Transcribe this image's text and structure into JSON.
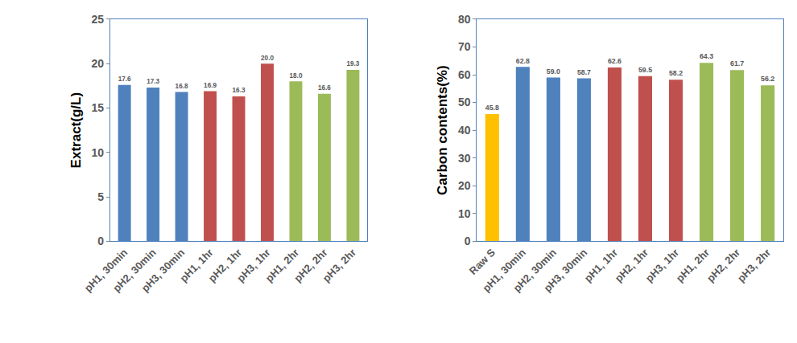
{
  "chart_data": [
    {
      "type": "bar",
      "y_label": "Extract(g/L)",
      "categories": [
        "pH1, 30min",
        "pH2, 30min",
        "pH3, 30min",
        "pH1, 1hr",
        "pH2, 1hr",
        "pH3, 1hr",
        "pH1, 2hr",
        "pH2, 2hr",
        "pH3, 2hr"
      ],
      "values": [
        17.6,
        17.3,
        16.8,
        16.9,
        16.3,
        20.0,
        18.0,
        16.6,
        19.3
      ],
      "value_labels": [
        "17.6",
        "17.3",
        "16.8",
        "16.9",
        "16.3",
        "20.0",
        "18.0",
        "16.6",
        "19.3"
      ],
      "colors": [
        "#4f81bd",
        "#4f81bd",
        "#4f81bd",
        "#c0504d",
        "#c0504d",
        "#c0504d",
        "#9bbb59",
        "#9bbb59",
        "#9bbb59"
      ],
      "ylim": [
        0,
        25
      ],
      "yticks": [
        0,
        5,
        10,
        15,
        20,
        25
      ],
      "grid": false,
      "data_labels": true
    },
    {
      "type": "bar",
      "y_label": "Carbon contents(%)",
      "categories": [
        "Raw S",
        "pH1, 30min",
        "pH2, 30min",
        "pH3, 30min",
        "pH1, 1hr",
        "pH2, 1hr",
        "pH3, 1hr",
        "pH1, 2hr",
        "pH2, 2hr",
        "pH3, 2hr"
      ],
      "values": [
        45.8,
        62.8,
        59.0,
        58.7,
        62.6,
        59.5,
        58.2,
        64.3,
        61.7,
        56.2
      ],
      "value_labels": [
        "45.8",
        "62.8",
        "59.0",
        "58.7",
        "62.6",
        "59.5",
        "58.2",
        "64.3",
        "61.7",
        "56.2"
      ],
      "colors": [
        "#ffc000",
        "#4f81bd",
        "#4f81bd",
        "#4f81bd",
        "#c0504d",
        "#c0504d",
        "#c0504d",
        "#9bbb59",
        "#9bbb59",
        "#9bbb59"
      ],
      "ylim": [
        0,
        80
      ],
      "yticks": [
        0,
        10,
        20,
        30,
        40,
        50,
        60,
        70,
        80
      ],
      "grid": false,
      "data_labels": true
    }
  ]
}
